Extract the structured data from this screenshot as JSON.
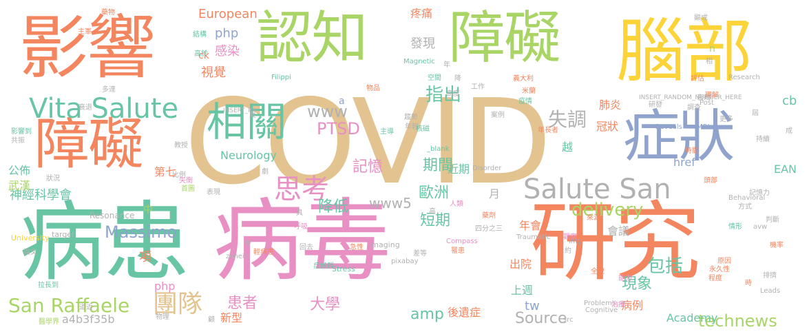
{
  "palette": {
    "orange": "#f4865f",
    "green": "#a9d566",
    "yellow": "#fcd43a",
    "tan": "#e3c38f",
    "teal": "#68c5a3",
    "pink": "#e88fc4",
    "blue": "#8fa3cc",
    "gray": "#b1b1b1"
  },
  "words": [
    {
      "text": "COVID",
      "color": "tan"
    },
    {
      "text": "病毒",
      "color": "pink"
    },
    {
      "text": "病患",
      "color": "teal"
    },
    {
      "text": "研究",
      "color": "orange"
    },
    {
      "text": "影響",
      "color": "orange"
    },
    {
      "text": "腦部",
      "color": "yellow"
    },
    {
      "text": "認知",
      "color": "green"
    },
    {
      "text": "障礙",
      "color": "green"
    },
    {
      "text": "障礙",
      "color": "orange"
    },
    {
      "text": "症狀",
      "color": "blue"
    },
    {
      "text": "相關",
      "color": "teal"
    },
    {
      "text": "Vita Salute",
      "color": "teal"
    },
    {
      "text": "Salute San",
      "color": "gray"
    },
    {
      "text": "思考",
      "color": "pink"
    },
    {
      "text": "團隊",
      "color": "tan"
    },
    {
      "text": "San Raffaele",
      "color": "green"
    },
    {
      "text": "Massimo",
      "color": "blue"
    },
    {
      "text": "PTSD",
      "color": "pink"
    },
    {
      "text": "失調",
      "color": "gray"
    },
    {
      "text": "delivery",
      "color": "green"
    },
    {
      "text": "www",
      "color": "gray"
    },
    {
      "text": "指出",
      "color": "teal"
    },
    {
      "text": "期間",
      "color": "teal"
    },
    {
      "text": "記憶",
      "color": "pink"
    },
    {
      "text": "降低",
      "color": "teal"
    },
    {
      "text": "歐洲",
      "color": "teal"
    },
    {
      "text": "短期",
      "color": "teal"
    },
    {
      "text": "www5",
      "color": "gray"
    },
    {
      "text": "包括",
      "color": "teal"
    },
    {
      "text": "現象",
      "color": "teal"
    },
    {
      "text": "Source",
      "color": "gray"
    },
    {
      "text": "technews",
      "color": "green"
    },
    {
      "text": "amp",
      "color": "teal"
    },
    {
      "text": "大學",
      "color": "pink"
    },
    {
      "text": "患者",
      "color": "pink"
    },
    {
      "text": "tw",
      "color": "blue"
    },
    {
      "text": "Academy",
      "color": "teal"
    },
    {
      "text": "a4b3f35b",
      "color": "gray"
    },
    {
      "text": "新型",
      "color": "orange"
    },
    {
      "text": "神經科學會",
      "color": "teal"
    },
    {
      "text": "Neurology",
      "color": "teal"
    },
    {
      "text": "php",
      "color": "blue"
    },
    {
      "text": "php",
      "color": "pink"
    },
    {
      "text": "感染",
      "color": "pink"
    },
    {
      "text": "視覺",
      "color": "orange"
    },
    {
      "text": "European",
      "color": "orange"
    },
    {
      "text": "發現",
      "color": "gray"
    },
    {
      "text": "cb",
      "color": "teal"
    },
    {
      "text": "冠狀",
      "color": "orange"
    },
    {
      "text": "肺炎",
      "color": "orange"
    },
    {
      "text": "越",
      "color": "teal"
    },
    {
      "text": "近期",
      "color": "teal"
    },
    {
      "text": "年會",
      "color": "orange"
    },
    {
      "text": "會議",
      "color": "gray"
    },
    {
      "text": "項",
      "color": "orange"
    },
    {
      "text": "出院",
      "color": "orange"
    },
    {
      "text": "上週",
      "color": "teal"
    },
    {
      "text": "病例",
      "color": "orange"
    },
    {
      "text": "後遺症",
      "color": "orange"
    },
    {
      "text": "第七",
      "color": "orange"
    },
    {
      "text": "公佈",
      "color": "teal"
    },
    {
      "text": "武漢",
      "color": "green"
    },
    {
      "text": "EAN",
      "color": "teal"
    },
    {
      "text": "href",
      "color": "blue"
    },
    {
      "text": "月",
      "color": "gray"
    },
    {
      "text": "疼痛",
      "color": "orange"
    },
    {
      "text": "a",
      "color": "blue"
    },
    {
      "text": "ck",
      "color": "orange"
    },
    {
      "text": "n",
      "color": "green"
    },
    {
      "text": "中",
      "color": "green"
    },
    {
      "text": "Resonance",
      "color": "gray"
    },
    {
      "text": "University",
      "color": "yellow"
    },
    {
      "text": "target",
      "color": "gray"
    },
    {
      "text": "Imaging",
      "color": "gray"
    },
    {
      "text": "Stress",
      "color": "teal"
    },
    {
      "text": "Traumatic",
      "color": "gray"
    },
    {
      "text": "Disorder",
      "color": "gray"
    },
    {
      "text": "Reveals",
      "color": "blue"
    },
    {
      "text": "MRI",
      "color": "blue"
    },
    {
      "text": "Research",
      "color": "gray"
    },
    {
      "text": "Post",
      "color": "gray"
    },
    {
      "text": "Magnetic",
      "color": "teal"
    },
    {
      "text": "Filippi",
      "color": "teal"
    },
    {
      "text": "INSERT_RA",
      "color": "gray"
    },
    {
      "text": "INSERT_RANDOM_NUMBER_HERE",
      "color": "gray"
    },
    {
      "text": "Behavioral",
      "color": "gray"
    },
    {
      "text": "Problems",
      "color": "gray"
    },
    {
      "text": "Cognitive",
      "color": "gray"
    },
    {
      "text": "Leads",
      "color": "gray"
    },
    {
      "text": "pixabay",
      "color": "gray"
    },
    {
      "text": "img",
      "color": "blue"
    },
    {
      "text": "_blank",
      "color": "teal"
    },
    {
      "text": "zoneid",
      "color": "gray"
    },
    {
      "text": "Compass",
      "color": "pink"
    },
    {
      "text": "avw",
      "color": "gray"
    },
    {
      "text": "src",
      "color": "gray"
    },
    {
      "text": "義大利",
      "color": "orange"
    },
    {
      "text": "米蘭",
      "color": "orange"
    },
    {
      "text": "疫情",
      "color": "teal"
    },
    {
      "text": "研發",
      "color": "gray"
    },
    {
      "text": "調查",
      "color": "gray"
    },
    {
      "text": "年長者",
      "color": "orange"
    },
    {
      "text": "案例",
      "color": "gray"
    },
    {
      "text": "持續",
      "color": "gray"
    },
    {
      "text": "頭部",
      "color": "orange"
    },
    {
      "text": "記憶力",
      "color": "gray"
    },
    {
      "text": "判斷",
      "color": "gray"
    },
    {
      "text": "情形",
      "color": "teal"
    },
    {
      "text": "方式",
      "color": "gray"
    },
    {
      "text": "機率",
      "color": "orange"
    },
    {
      "text": "原因",
      "color": "orange"
    },
    {
      "text": "永久性",
      "color": "orange"
    },
    {
      "text": "程度",
      "color": "orange"
    },
    {
      "text": "治療",
      "color": "pink"
    },
    {
      "text": "全貌",
      "color": "orange"
    },
    {
      "text": "排擠",
      "color": "gray"
    },
    {
      "text": "約",
      "color": "gray"
    },
    {
      "text": "觀察",
      "color": "pink"
    },
    {
      "text": "能力",
      "color": "pink"
    },
    {
      "text": "時",
      "color": "orange"
    },
    {
      "text": "藥物",
      "color": "orange"
    },
    {
      "text": "主軍",
      "color": "orange"
    },
    {
      "text": "高於",
      "color": "teal"
    },
    {
      "text": "多達",
      "color": "gray"
    },
    {
      "text": "衰退",
      "color": "gray"
    },
    {
      "text": "結構",
      "color": "teal"
    },
    {
      "text": "狀況",
      "color": "gray"
    },
    {
      "text": "影響到",
      "color": "teal"
    },
    {
      "text": "共振",
      "color": "gray"
    },
    {
      "text": "教授",
      "color": "gray"
    },
    {
      "text": "比例",
      "color": "gray"
    },
    {
      "text": "失衡",
      "color": "pink"
    },
    {
      "text": "首圖",
      "color": "green"
    },
    {
      "text": "表現",
      "color": "gray"
    },
    {
      "text": "症候群",
      "color": "teal"
    },
    {
      "text": "呼吸",
      "color": "pink"
    },
    {
      "text": "回去",
      "color": "gray"
    },
    {
      "text": "急性",
      "color": "orange"
    },
    {
      "text": "輕病患",
      "color": "orange"
    },
    {
      "text": "差等",
      "color": "gray"
    },
    {
      "text": "論文",
      "color": "gray"
    },
    {
      "text": "道近",
      "color": "gray"
    },
    {
      "text": "拉長到",
      "color": "teal"
    },
    {
      "text": "醫學界",
      "color": "green"
    },
    {
      "text": "物理",
      "color": "gray"
    },
    {
      "text": "藥劑",
      "color": "orange"
    },
    {
      "text": "來源",
      "color": "orange"
    },
    {
      "text": "人類",
      "color": "pink"
    },
    {
      "text": "四分之三",
      "color": "gray"
    },
    {
      "text": "年輕",
      "color": "gray"
    },
    {
      "text": "趨勢",
      "color": "gray"
    },
    {
      "text": "核磁",
      "color": "teal"
    },
    {
      "text": "高度",
      "color": "gray"
    },
    {
      "text": "空間",
      "color": "teal"
    },
    {
      "text": "物品",
      "color": "orange"
    },
    {
      "text": "工作",
      "color": "gray"
    },
    {
      "text": "相",
      "color": "gray"
    },
    {
      "text": "評估",
      "color": "orange"
    },
    {
      "text": "更多",
      "color": "gray"
    },
    {
      "text": "時間",
      "color": "orange"
    },
    {
      "text": "理解",
      "color": "orange"
    },
    {
      "text": "成",
      "color": "gray"
    },
    {
      "text": "屆",
      "color": "gray"
    },
    {
      "text": "夏",
      "color": "gray"
    },
    {
      "text": "劇",
      "color": "gray"
    },
    {
      "text": "具",
      "color": "gray"
    },
    {
      "text": "帝",
      "color": "gray"
    },
    {
      "text": "顧",
      "color": "gray"
    },
    {
      "text": "降",
      "color": "gray"
    },
    {
      "text": "年",
      "color": "gray"
    },
    {
      "text": "主導",
      "color": "teal"
    },
    {
      "text": "罹患",
      "color": "orange"
    },
    {
      "text": "衰竭",
      "color": "gray"
    },
    {
      "text": "高",
      "color": "gray"
    },
    {
      "text": "顯成",
      "color": "gray"
    }
  ]
}
